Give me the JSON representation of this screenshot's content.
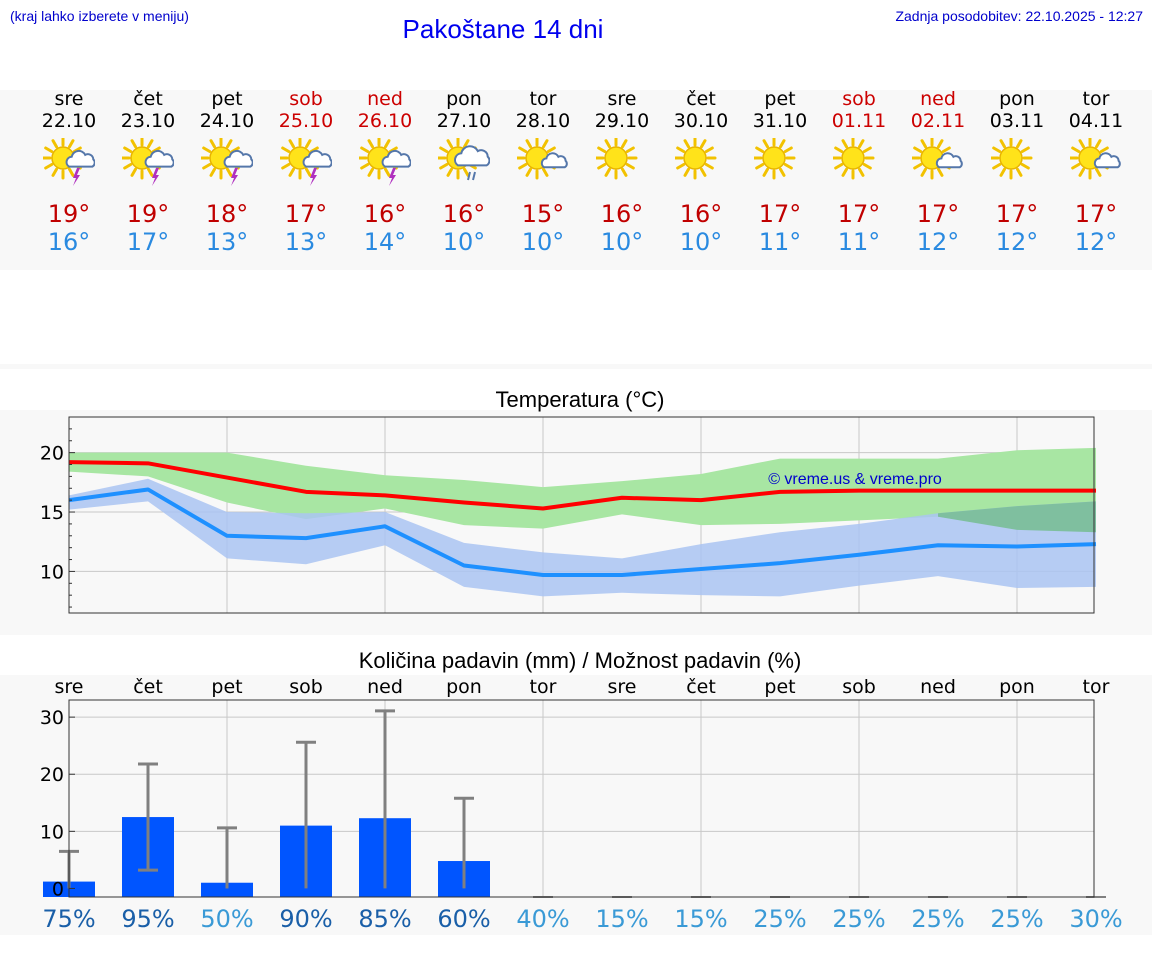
{
  "header": {
    "hint": "(kraj lahko izberete v meniju)",
    "title": "Pakoštane 14 dni",
    "updated": "Zadnja posodobitev: 22.10.2025 - 12:27"
  },
  "days": [
    {
      "name": "sre",
      "date": "22.10",
      "weekend": false,
      "icon": "sun-thunderstorm-icon",
      "max": "19°",
      "min": "16°"
    },
    {
      "name": "čet",
      "date": "23.10",
      "weekend": false,
      "icon": "sun-thunderstorm-icon",
      "max": "19°",
      "min": "17°"
    },
    {
      "name": "pet",
      "date": "24.10",
      "weekend": false,
      "icon": "sun-thunderstorm-icon",
      "max": "18°",
      "min": "13°"
    },
    {
      "name": "sob",
      "date": "25.10",
      "weekend": true,
      "icon": "sun-thunderstorm-icon",
      "max": "17°",
      "min": "13°"
    },
    {
      "name": "ned",
      "date": "26.10",
      "weekend": true,
      "icon": "sun-thunderstorm-icon",
      "max": "16°",
      "min": "14°"
    },
    {
      "name": "pon",
      "date": "27.10",
      "weekend": false,
      "icon": "sun-rain-icon",
      "max": "16°",
      "min": "10°"
    },
    {
      "name": "tor",
      "date": "28.10",
      "weekend": false,
      "icon": "sun-cloud-icon",
      "max": "15°",
      "min": "10°"
    },
    {
      "name": "sre",
      "date": "29.10",
      "weekend": false,
      "icon": "sun-icon",
      "max": "16°",
      "min": "10°"
    },
    {
      "name": "čet",
      "date": "30.10",
      "weekend": false,
      "icon": "sun-icon",
      "max": "16°",
      "min": "10°"
    },
    {
      "name": "pet",
      "date": "31.10",
      "weekend": false,
      "icon": "sun-icon",
      "max": "17°",
      "min": "11°"
    },
    {
      "name": "sob",
      "date": "01.11",
      "weekend": true,
      "icon": "sun-icon",
      "max": "17°",
      "min": "11°"
    },
    {
      "name": "ned",
      "date": "02.11",
      "weekend": true,
      "icon": "sun-cloud-icon",
      "max": "17°",
      "min": "12°"
    },
    {
      "name": "pon",
      "date": "03.11",
      "weekend": false,
      "icon": "sun-icon",
      "max": "17°",
      "min": "12°"
    },
    {
      "name": "tor",
      "date": "04.11",
      "weekend": false,
      "icon": "sun-cloud-icon",
      "max": "17°",
      "min": "12°"
    }
  ],
  "colors": {
    "max": "#ff0000",
    "min": "#1e90ff",
    "max_band": "#a8e6a3",
    "min_band": "#aac4f2",
    "overlap": "#7fbf9f",
    "bar": "#0055ff",
    "errbar": "#808080",
    "chance_high": "#1a5fa8",
    "chance_low": "#3a9ad6"
  },
  "chart_data": [
    {
      "type": "line",
      "title": "Temperatura (°C)",
      "watermark": "© vreme.us & vreme.pro",
      "ylim": [
        6.5,
        23
      ],
      "yticks": [
        10,
        15,
        20
      ],
      "grid": true,
      "x": [
        "22.10",
        "23.10",
        "24.10",
        "25.10",
        "26.10",
        "27.10",
        "28.10",
        "29.10",
        "30.10",
        "31.10",
        "01.11",
        "02.11",
        "03.11",
        "04.11"
      ],
      "series": [
        {
          "name": "max",
          "values": [
            19.2,
            19.1,
            17.9,
            16.7,
            16.4,
            15.8,
            15.3,
            16.2,
            16.0,
            16.7,
            16.8,
            16.8,
            16.8,
            16.8
          ]
        },
        {
          "name": "min",
          "values": [
            16.0,
            16.9,
            13.0,
            12.8,
            13.8,
            10.5,
            9.7,
            9.7,
            10.2,
            10.7,
            11.4,
            12.2,
            12.1,
            12.3
          ]
        },
        {
          "name": "max_upper",
          "values": [
            20.0,
            20.0,
            20.0,
            18.9,
            18.1,
            17.7,
            17.1,
            17.6,
            18.2,
            19.5,
            19.5,
            19.5,
            20.2,
            20.4
          ]
        },
        {
          "name": "max_lower",
          "values": [
            18.4,
            18.0,
            15.8,
            14.4,
            15.3,
            13.9,
            13.6,
            14.8,
            13.9,
            14.0,
            14.3,
            14.6,
            14.8,
            14.9
          ]
        },
        {
          "name": "min_upper",
          "values": [
            16.4,
            17.8,
            15.0,
            14.9,
            15.0,
            12.4,
            11.6,
            11.1,
            12.3,
            13.3,
            14.0,
            14.9,
            15.5,
            15.9
          ]
        },
        {
          "name": "min_lower",
          "values": [
            15.2,
            15.9,
            11.1,
            10.6,
            12.2,
            8.7,
            7.9,
            8.2,
            8.0,
            7.9,
            8.8,
            9.6,
            8.6,
            8.7
          ]
        },
        {
          "name": "max_band_low_right",
          "values": [
            null,
            null,
            null,
            null,
            null,
            null,
            null,
            null,
            null,
            null,
            null,
            14.6,
            13.5,
            13.3
          ]
        }
      ]
    },
    {
      "type": "bar",
      "title": "Količina padavin (mm) / Možnost padavin (%)",
      "ylim": [
        -1.5,
        33
      ],
      "yticks": [
        0,
        10,
        20,
        30
      ],
      "grid": true,
      "categories": [
        "sre",
        "čet",
        "pet",
        "sob",
        "ned",
        "pon",
        "tor",
        "sre",
        "čet",
        "pet",
        "sob",
        "ned",
        "pon",
        "tor"
      ],
      "values": [
        1.2,
        12.5,
        1.0,
        11.0,
        12.3,
        4.8,
        0,
        0,
        0,
        0,
        0,
        0,
        0,
        0
      ],
      "err_high": [
        6.5,
        21.8,
        10.6,
        25.6,
        31.1,
        15.8,
        0,
        0,
        0,
        0,
        0,
        0,
        0,
        0
      ],
      "err_low": [
        0,
        3.2,
        0,
        0,
        0,
        0,
        0,
        0,
        0,
        0,
        0,
        0,
        0,
        0
      ],
      "chances": [
        "75%",
        "95%",
        "50%",
        "90%",
        "85%",
        "60%",
        "40%",
        "15%",
        "15%",
        "25%",
        "25%",
        "25%",
        "25%",
        "30%"
      ],
      "chance_values": [
        75,
        95,
        50,
        90,
        85,
        60,
        40,
        15,
        15,
        25,
        25,
        25,
        25,
        30
      ]
    }
  ]
}
